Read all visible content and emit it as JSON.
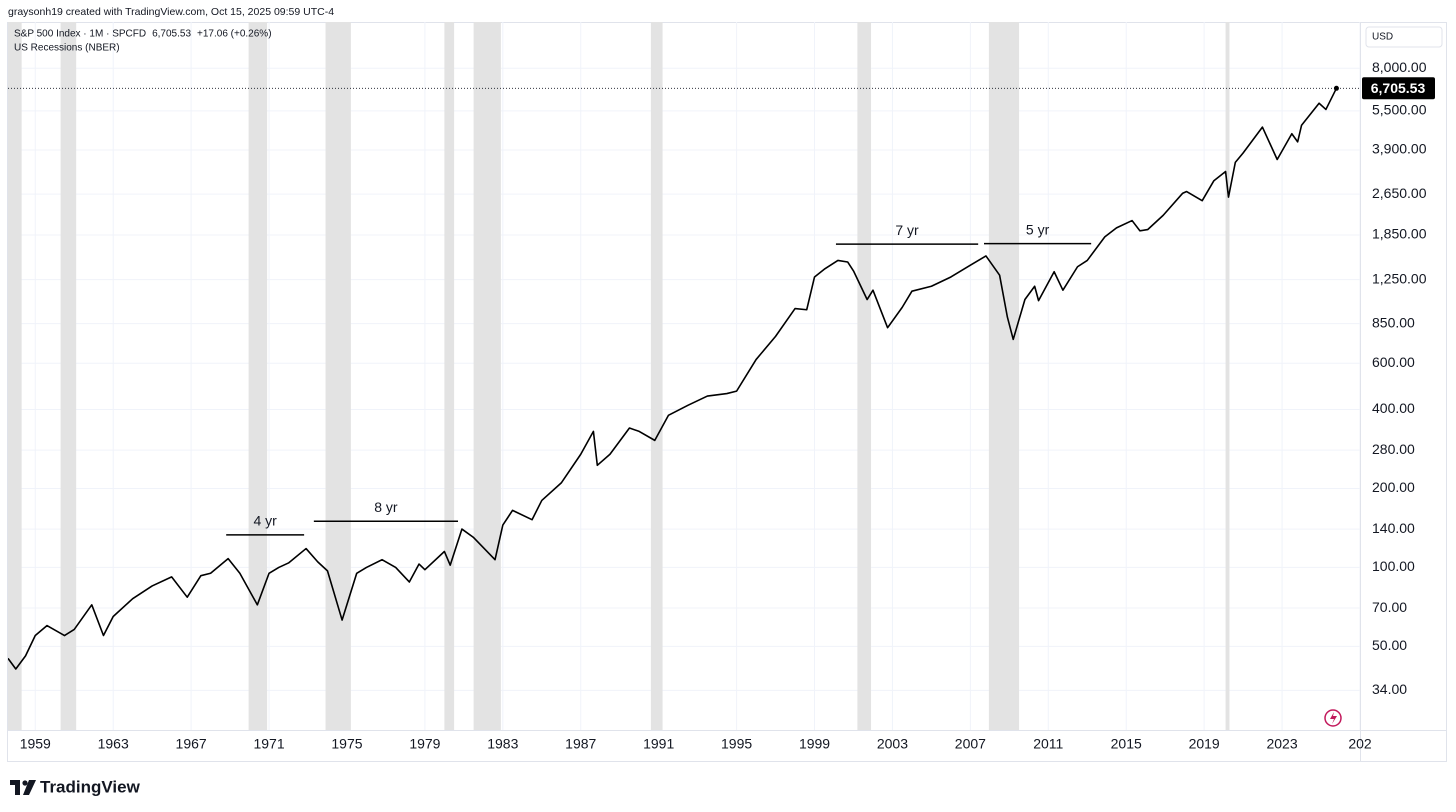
{
  "header": {
    "credit": "graysonh19 created with TradingView.com, Oct 15, 2025 09:59 UTC-4"
  },
  "footer": {
    "brand": "TradingView"
  },
  "chart_data": {
    "type": "line",
    "symbol": "S&P 500 Index · 1M · SPCFD",
    "price": "6,705.53",
    "change": "+17.06 (+0.26%)",
    "currency": "USD",
    "last_price_label": "6,705.53",
    "log_scale": true,
    "grid": true,
    "x": [
      1957.6,
      1958.0,
      1958.5,
      1959.0,
      1959.6,
      1960.5,
      1961.0,
      1961.9,
      1962.5,
      1963.0,
      1964.0,
      1965.0,
      1966.0,
      1966.8,
      1967.5,
      1968.0,
      1968.9,
      1969.5,
      1970.4,
      1971.0,
      1971.5,
      1972.0,
      1972.9,
      1973.5,
      1974.0,
      1974.75,
      1975.5,
      1976.0,
      1976.8,
      1977.5,
      1978.2,
      1978.7,
      1979.0,
      1980.0,
      1980.3,
      1980.9,
      1981.5,
      1982.6,
      1983.0,
      1983.5,
      1984.5,
      1985.0,
      1986.0,
      1987.0,
      1987.65,
      1987.85,
      1988.5,
      1989.5,
      1990.0,
      1990.8,
      1991.5,
      1992.5,
      1993.5,
      1994.5,
      1995.0,
      1996.0,
      1997.0,
      1998.0,
      1998.6,
      1999.0,
      1999.5,
      2000.2,
      2000.7,
      2001.0,
      2001.7,
      2002.0,
      2002.75,
      2003.5,
      2004.0,
      2005.0,
      2006.0,
      2007.0,
      2007.8,
      2008.5,
      2008.9,
      2009.2,
      2009.8,
      2010.3,
      2010.5,
      2011.3,
      2011.75,
      2012.5,
      2013.0,
      2013.9,
      2014.5,
      2015.3,
      2015.7,
      2016.1,
      2016.9,
      2017.9,
      2018.1,
      2018.9,
      2019.5,
      2020.1,
      2020.25,
      2020.6,
      2021.0,
      2021.99,
      2022.75,
      2023.5,
      2023.8,
      2024.0,
      2024.9,
      2025.25,
      2025.79
    ],
    "series": [
      {
        "name": "S&P 500 Index",
        "color": "#000000",
        "values": [
          45,
          41,
          46,
          55,
          60,
          55,
          58,
          72,
          55,
          65,
          76,
          85,
          92,
          77,
          93,
          95,
          108,
          95,
          72,
          95,
          100,
          104,
          118,
          105,
          97,
          63,
          95,
          100,
          107,
          100,
          88,
          103,
          98,
          115,
          102,
          140,
          130,
          107,
          145,
          165,
          152,
          180,
          210,
          270,
          330,
          245,
          270,
          340,
          330,
          305,
          380,
          415,
          450,
          460,
          470,
          620,
          760,
          970,
          960,
          1280,
          1370,
          1480,
          1460,
          1350,
          1050,
          1140,
          820,
          980,
          1130,
          1180,
          1280,
          1420,
          1540,
          1300,
          900,
          740,
          1050,
          1180,
          1040,
          1340,
          1140,
          1400,
          1480,
          1820,
          1970,
          2100,
          1920,
          1940,
          2200,
          2670,
          2710,
          2500,
          2980,
          3230,
          2580,
          3500,
          3800,
          4770,
          3590,
          4500,
          4190,
          4850,
          5880,
          5570,
          6705.53
        ]
      }
    ],
    "recessions": {
      "name": "US Recessions (NBER)",
      "color": "#e3e3e3",
      "periods": [
        [
          1957.6,
          1958.3
        ],
        [
          1960.3,
          1961.1
        ],
        [
          1969.95,
          1970.9
        ],
        [
          1973.9,
          1975.2
        ],
        [
          1980.0,
          1980.5
        ],
        [
          1981.5,
          1982.9
        ],
        [
          1990.6,
          1991.2
        ],
        [
          2001.2,
          2001.9
        ],
        [
          2007.95,
          2009.5
        ],
        [
          2020.1,
          2020.3
        ]
      ]
    },
    "annotations": [
      {
        "text": "4 yr",
        "x": [
          1968.8,
          1972.8
        ],
        "y": 133
      },
      {
        "text": "8 yr",
        "x": [
          1973.3,
          1980.7
        ],
        "y": 150
      },
      {
        "text": "7 yr",
        "x": [
          2000.1,
          2007.4
        ],
        "y": 1708
      },
      {
        "text": "5 yr",
        "x": [
          2007.7,
          2013.2
        ],
        "y": 1715
      }
    ],
    "xlim": [
      1957.6,
      2027.0
    ],
    "xticks": [
      1959,
      1963,
      1967,
      1971,
      1975,
      1979,
      1983,
      1987,
      1991,
      1995,
      1999,
      2003,
      2007,
      2011,
      2015,
      2019,
      2023,
      {
        "value": 2027,
        "label": "202"
      }
    ],
    "ylim": [
      24,
      12000
    ],
    "yticks": [
      {
        "value": 34,
        "label": "34.00"
      },
      {
        "value": 50,
        "label": "50.00"
      },
      {
        "value": 70,
        "label": "70.00"
      },
      {
        "value": 100,
        "label": "100.00"
      },
      {
        "value": 140,
        "label": "140.00"
      },
      {
        "value": 200,
        "label": "200.00"
      },
      {
        "value": 280,
        "label": "280.00"
      },
      {
        "value": 400,
        "label": "400.00"
      },
      {
        "value": 600,
        "label": "600.00"
      },
      {
        "value": 850,
        "label": "850.00"
      },
      {
        "value": 1250,
        "label": "1,250.00"
      },
      {
        "value": 1850,
        "label": "1,850.00"
      },
      {
        "value": 2650,
        "label": "2,650.00"
      },
      {
        "value": 3900,
        "label": "3,900.00"
      },
      {
        "value": 5500,
        "label": "5,500.00"
      },
      {
        "value": 8000,
        "label": "8,000.00"
      }
    ]
  }
}
